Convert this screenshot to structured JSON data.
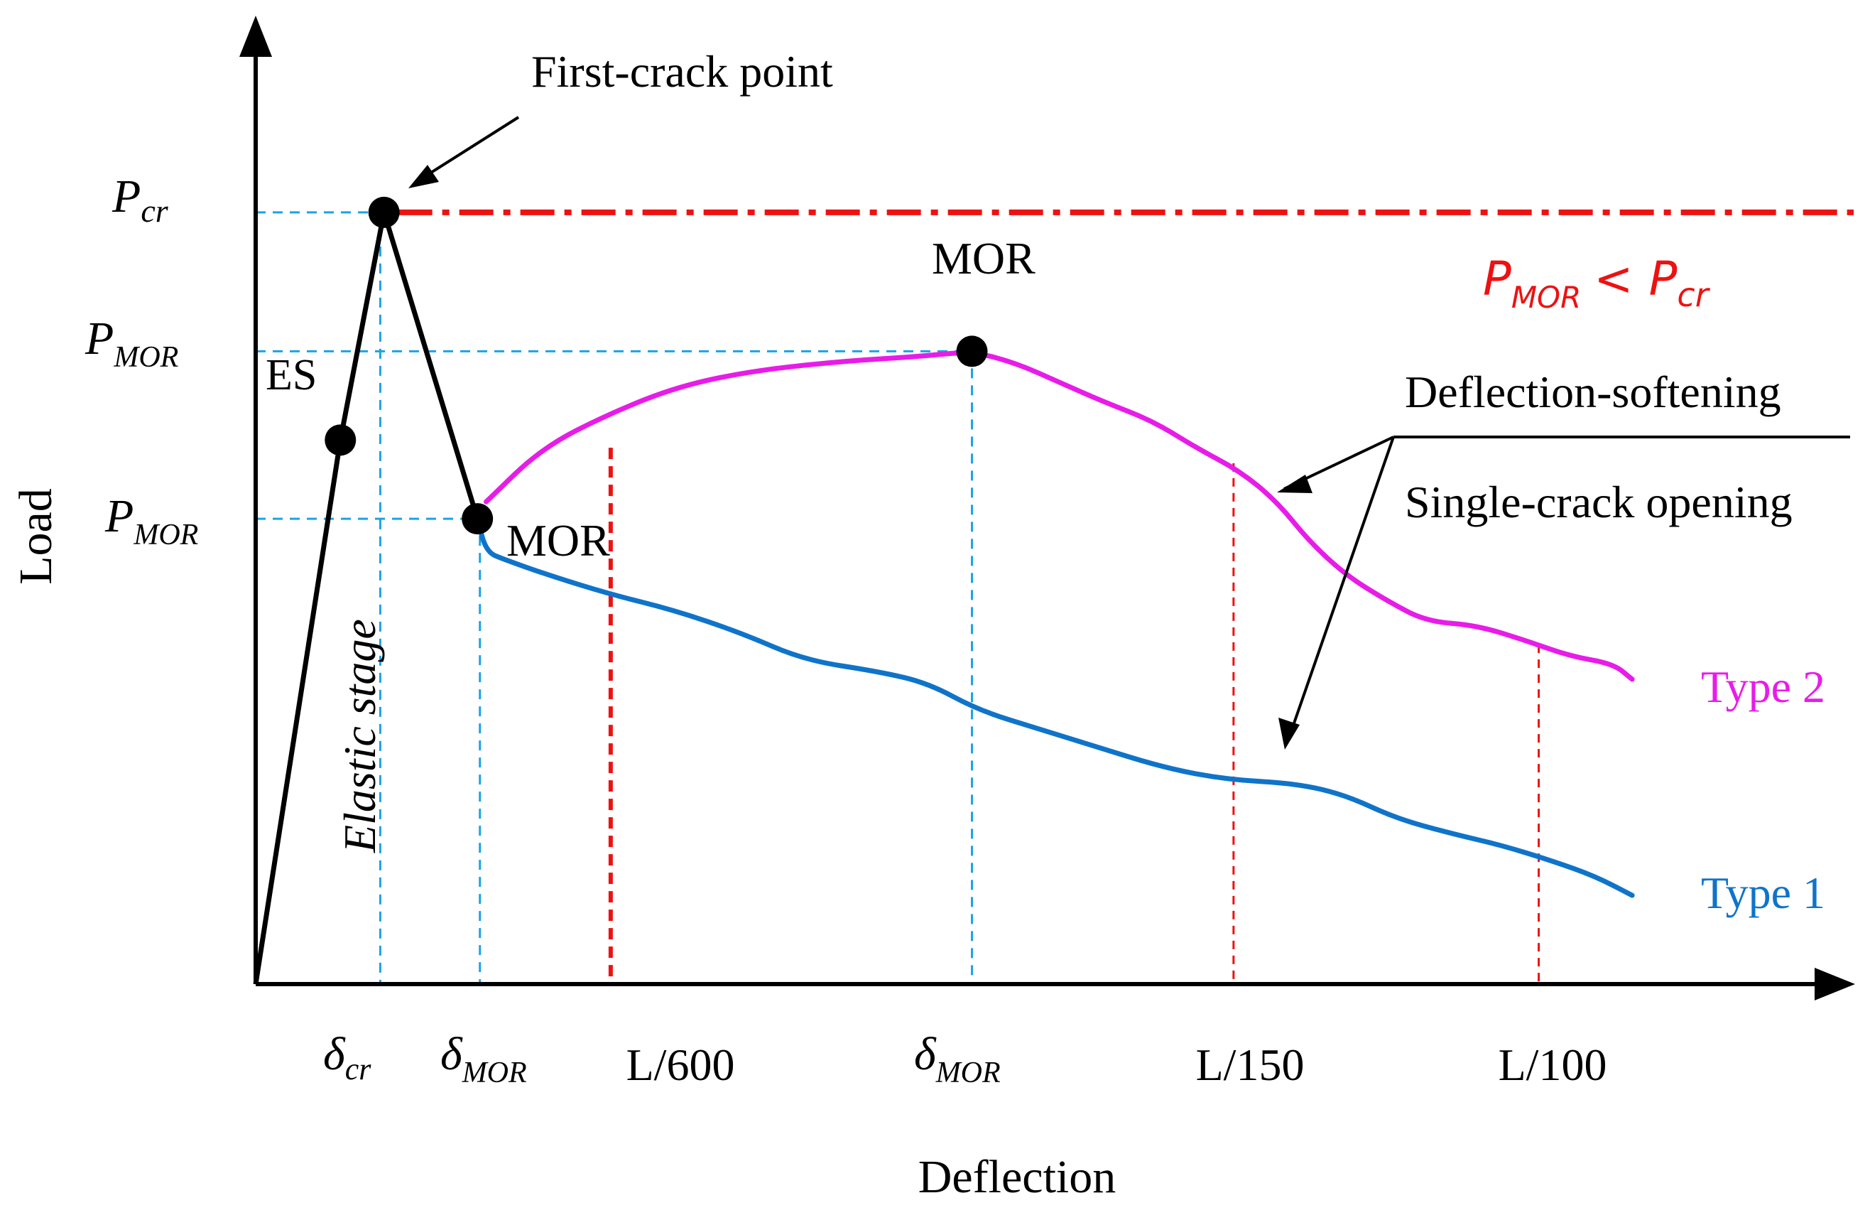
{
  "chart_data": {
    "type": "line",
    "title": "",
    "xlabel": "Deflection",
    "ylabel": "Load",
    "grid": false,
    "legend": "none (series labelled at line ends, right side)",
    "x_ticks": [
      {
        "key": "d_cr",
        "x": 1.0,
        "text": "δ",
        "sub": "cr"
      },
      {
        "key": "d_mor1",
        "x": 1.8,
        "text": "δ",
        "sub": "MOR"
      },
      {
        "key": "l600",
        "x": 2.85,
        "text": "L/600"
      },
      {
        "key": "d_mor2",
        "x": 5.75,
        "text": "δ",
        "sub": "MOR"
      },
      {
        "key": "l150",
        "x": 7.85,
        "text": "L/150"
      },
      {
        "key": "l100",
        "x": 10.3,
        "text": "L/100"
      }
    ],
    "y_ticks": [
      {
        "key": "p_cr",
        "y": 10.0,
        "text": "P",
        "sub": "cr"
      },
      {
        "key": "p_mor2",
        "y": 8.2,
        "text": "P",
        "sub": "MOR"
      },
      {
        "key": "p_mor1",
        "y": 6.03,
        "text": "P",
        "sub": "MOR"
      }
    ],
    "xlim": [
      0,
      12.6
    ],
    "ylim": [
      0,
      12.2
    ],
    "elastic": [
      [
        0,
        0
      ],
      [
        0.68,
        7.05
      ],
      [
        1.03,
        10.0
      ],
      [
        1.78,
        6.03
      ]
    ],
    "series": [
      {
        "name": "Type 2",
        "color": "#e81ce8",
        "values": [
          [
            1.85,
            6.25
          ],
          [
            2.3,
            6.95
          ],
          [
            2.85,
            7.4
          ],
          [
            3.4,
            7.75
          ],
          [
            4.0,
            7.95
          ],
          [
            4.7,
            8.07
          ],
          [
            5.3,
            8.13
          ],
          [
            5.75,
            8.2
          ],
          [
            6.1,
            8.05
          ],
          [
            6.45,
            7.8
          ],
          [
            6.8,
            7.55
          ],
          [
            7.2,
            7.3
          ],
          [
            7.55,
            6.95
          ],
          [
            7.9,
            6.65
          ],
          [
            8.2,
            6.25
          ],
          [
            8.45,
            5.75
          ],
          [
            8.75,
            5.3
          ],
          [
            9.1,
            4.95
          ],
          [
            9.4,
            4.7
          ],
          [
            9.8,
            4.65
          ],
          [
            10.2,
            4.45
          ],
          [
            10.55,
            4.25
          ],
          [
            10.9,
            4.15
          ],
          [
            11.05,
            3.95
          ]
        ]
      },
      {
        "name": "Type 1",
        "color": "#0f74c9",
        "values": [
          [
            1.78,
            6.03
          ],
          [
            1.85,
            5.6
          ],
          [
            2.0,
            5.5
          ],
          [
            2.35,
            5.3
          ],
          [
            2.85,
            5.05
          ],
          [
            3.35,
            4.85
          ],
          [
            3.9,
            4.55
          ],
          [
            4.4,
            4.2
          ],
          [
            5.0,
            4.05
          ],
          [
            5.4,
            3.9
          ],
          [
            5.8,
            3.55
          ],
          [
            6.3,
            3.3
          ],
          [
            6.7,
            3.1
          ],
          [
            7.3,
            2.8
          ],
          [
            7.8,
            2.65
          ],
          [
            8.35,
            2.6
          ],
          [
            8.75,
            2.45
          ],
          [
            9.15,
            2.15
          ],
          [
            9.6,
            1.95
          ],
          [
            10.0,
            1.8
          ],
          [
            10.4,
            1.6
          ],
          [
            10.75,
            1.4
          ],
          [
            11.05,
            1.15
          ]
        ]
      }
    ],
    "points": [
      {
        "key": "es",
        "x": 0.68,
        "y": 7.05,
        "label": "ES"
      },
      {
        "key": "first_crack",
        "x": 1.03,
        "y": 10.0
      },
      {
        "key": "mor1",
        "x": 1.78,
        "y": 6.03,
        "label": "MOR"
      },
      {
        "key": "mor2",
        "x": 5.75,
        "y": 8.2,
        "label": "MOR"
      }
    ],
    "guide_lines": {
      "pcr_level": 10.0,
      "red_verticals_x": [
        2.85,
        7.85,
        10.3
      ]
    },
    "annotations": {
      "first_crack": "First-crack point",
      "elastic_stage": "Elastic stage",
      "deflection_softening": "Deflection-softening",
      "single_crack": "Single-crack opening",
      "inequality": {
        "lhs": "P",
        "lhs_sub": "MOR",
        "op": "<",
        "rhs": "P",
        "rhs_sub": "cr"
      }
    }
  },
  "colors": {
    "axis": "#000000",
    "pcr_line": "#ee1111",
    "guide_blue": "#1aa3e6",
    "guide_red": "#ee1111",
    "type1": "#0f74c9",
    "type2": "#e81ce8"
  }
}
